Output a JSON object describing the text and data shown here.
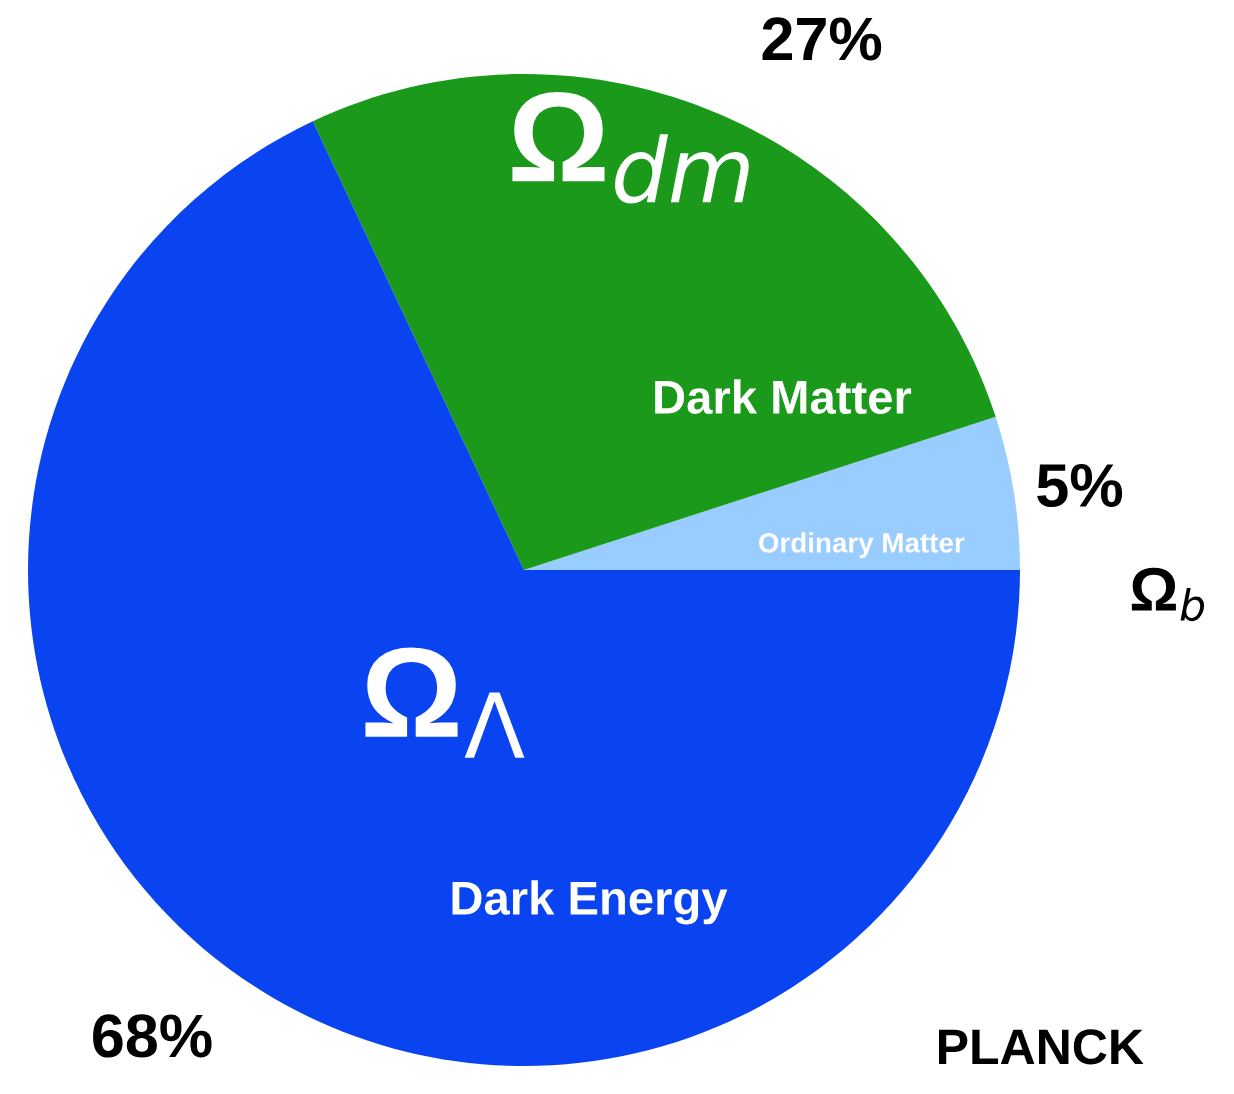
{
  "chart_data": {
    "type": "pie",
    "categories": [
      "Ordinary Matter",
      "Dark Matter",
      "Dark Energy"
    ],
    "values": [
      5,
      27,
      68
    ],
    "colors": [
      "#99ccff",
      "#1a991a",
      "#0a44f0"
    ],
    "value_labels": [
      "5%",
      "27%",
      "68%"
    ],
    "annotations": [
      "Ω$_{dm}$",
      "Ω$_{Λ}$",
      "Ω$_{b}$",
      "PLANCK"
    ],
    "legend": false
  }
}
